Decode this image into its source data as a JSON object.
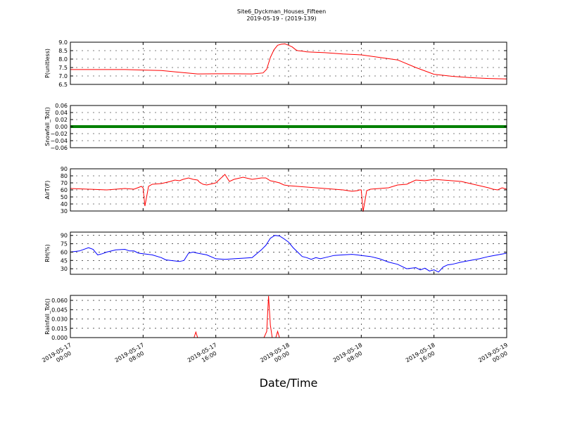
{
  "figure": {
    "title": "Site6_Dyckman_Houses_Fifteen",
    "subtitle": "2019-05-19 - (2019-139)",
    "xlabel": "Date/Time",
    "x_tick_labels": [
      [
        "2019-05-17",
        "00:00"
      ],
      [
        "2019-05-17",
        "08:00"
      ],
      [
        "2019-05-17",
        "16:00"
      ],
      [
        "2019-05-18",
        "00:00"
      ],
      [
        "2019-05-18",
        "08:00"
      ],
      [
        "2019-05-18",
        "16:00"
      ],
      [
        "2019-05-19",
        "00:00"
      ]
    ]
  },
  "chart_data": [
    {
      "type": "line",
      "ylabel": "P(unitless)",
      "color": "#ff0000",
      "ylim": [
        6.5,
        9.0
      ],
      "yticks": [
        "6.5",
        "7.0",
        "7.5",
        "8.0",
        "8.5",
        "9.0"
      ],
      "x": [
        0,
        2,
        4,
        6,
        8,
        10,
        12,
        14,
        16,
        18,
        20,
        21.2,
        21.6,
        22,
        22.4,
        22.8,
        23.2,
        23.6,
        24,
        24.4,
        24.8,
        25,
        25.4,
        25.8,
        26,
        28,
        30,
        32,
        34,
        36,
        38,
        40,
        42,
        44,
        46,
        48
      ],
      "y": [
        7.38,
        7.38,
        7.38,
        7.38,
        7.35,
        7.32,
        7.22,
        7.12,
        7.13,
        7.13,
        7.12,
        7.18,
        7.4,
        8.1,
        8.55,
        8.82,
        8.88,
        8.9,
        8.82,
        8.72,
        8.55,
        8.5,
        8.48,
        8.45,
        8.43,
        8.38,
        8.3,
        8.25,
        8.1,
        7.95,
        7.5,
        7.1,
        6.98,
        6.9,
        6.85,
        6.82
      ],
      "grid": true
    },
    {
      "type": "line",
      "ylabel": "Snowfall_Tot()",
      "color": "#008000",
      "ylim": [
        -0.06,
        0.06
      ],
      "yticks": [
        "−0.06",
        "−0.04",
        "−0.02",
        "0.00",
        "0.02",
        "0.04",
        "0.06"
      ],
      "x": [
        0,
        48
      ],
      "y": [
        0.0,
        0.0
      ],
      "grid": true
    },
    {
      "type": "line",
      "ylabel": "AirT(F)",
      "color": "#ff0000",
      "ylim": [
        30,
        90
      ],
      "yticks": [
        "30",
        "40",
        "50",
        "60",
        "70",
        "80",
        "90"
      ],
      "x": [
        0,
        2,
        4,
        6,
        7,
        7.6,
        7.8,
        8.0,
        8.2,
        8.6,
        9,
        10,
        11,
        11.5,
        12,
        12.4,
        13,
        13.5,
        14,
        14.2,
        14.6,
        15,
        16,
        17,
        17.5,
        18,
        19,
        20,
        21,
        21.5,
        22,
        22.4,
        23,
        23.5,
        24,
        26,
        28,
        30,
        31,
        31.6,
        31.8,
        32.0,
        32.2,
        32.6,
        33,
        34,
        35,
        36,
        37,
        38,
        39,
        40,
        41,
        42,
        43,
        44,
        45,
        46,
        46.5,
        47,
        47.5,
        48
      ],
      "y": [
        62,
        61,
        60,
        62,
        61,
        64,
        65,
        63,
        37,
        65,
        68,
        69,
        72,
        74,
        73,
        75,
        77,
        75,
        74,
        71,
        68,
        67,
        70,
        82,
        72,
        75,
        78,
        75,
        77,
        77,
        73,
        72,
        70,
        67,
        66,
        64,
        62,
        60,
        58,
        59,
        60,
        60,
        29,
        59,
        61,
        62,
        63,
        67,
        68,
        74,
        73,
        75,
        74,
        73,
        72,
        69,
        66,
        63,
        61,
        60,
        63,
        61
      ]
    },
    {
      "type": "line",
      "ylabel": "RH(%)",
      "color": "#0000ff",
      "ylim": [
        20,
        96
      ],
      "yticks": [
        "30",
        "45",
        "60",
        "75",
        "90"
      ],
      "x": [
        0,
        1,
        2,
        2.5,
        3,
        3.5,
        4,
        5,
        6,
        6.5,
        7,
        7.5,
        8,
        9,
        10,
        10.5,
        11,
        12,
        12.5,
        13,
        13.5,
        14,
        15,
        16,
        17,
        18,
        19,
        20,
        20.5,
        21,
        21.5,
        22,
        22.5,
        23,
        23.5,
        24,
        24.5,
        25,
        25.5,
        26,
        26.5,
        27,
        27.5,
        28,
        29,
        30,
        31,
        32,
        33,
        34,
        35,
        36,
        37,
        38,
        38.5,
        39,
        39.5,
        40,
        40.5,
        41,
        41.5,
        42,
        43,
        44,
        45,
        46,
        47,
        48
      ],
      "y": [
        60,
        62,
        68,
        65,
        55,
        57,
        60,
        64,
        65,
        62,
        62,
        58,
        57,
        55,
        50,
        46,
        45,
        43,
        45,
        58,
        60,
        58,
        55,
        48,
        47,
        48,
        49,
        50,
        57,
        64,
        72,
        85,
        90,
        89,
        84,
        78,
        68,
        60,
        52,
        50,
        47,
        50,
        48,
        50,
        54,
        55,
        56,
        54,
        52,
        48,
        42,
        38,
        30,
        32,
        28,
        31,
        26,
        28,
        24,
        33,
        37,
        38,
        42,
        45,
        48,
        52,
        55,
        58
      ],
      "grid": true
    },
    {
      "type": "line",
      "ylabel": "Rainfall_Tot()",
      "color": "#ff0000",
      "ylim": [
        0.0,
        0.068
      ],
      "yticks": [
        "0.000",
        "0.015",
        "0.030",
        "0.045",
        "0.060"
      ],
      "x": [
        0,
        13.6,
        13.8,
        14.0,
        21.0,
        21.3,
        21.6,
        21.8,
        22.0,
        22.2,
        22.6,
        22.8,
        23.0,
        48
      ],
      "y": [
        0,
        0,
        0.009,
        0,
        0,
        0,
        0.01,
        0.067,
        0.02,
        0,
        0,
        0.01,
        0,
        0
      ],
      "grid": true
    }
  ]
}
